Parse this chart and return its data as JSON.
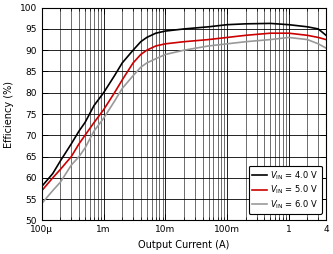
{
  "xlabel": "Output Current (A)",
  "ylabel": "Efficiency (%)",
  "xlim": [
    0.0001,
    4
  ],
  "ylim": [
    50,
    100
  ],
  "yticks": [
    50,
    55,
    60,
    65,
    70,
    75,
    80,
    85,
    90,
    95,
    100
  ],
  "legend": [
    {
      "label": "V_IN = 4.0 V",
      "color": "#000000"
    },
    {
      "label": "V_IN = 5.0 V",
      "color": "#cc0000"
    },
    {
      "label": "V_IN = 6.0 V",
      "color": "#999999"
    }
  ],
  "curves": {
    "vin4": {
      "color": "#000000",
      "x": [
        0.0001,
        0.00015,
        0.0002,
        0.0003,
        0.0004,
        0.0005,
        0.0007,
        0.001,
        0.0015,
        0.002,
        0.003,
        0.004,
        0.005,
        0.007,
        0.01,
        0.02,
        0.05,
        0.1,
        0.2,
        0.5,
        1.0,
        2.0,
        3.0,
        4.0
      ],
      "y": [
        58,
        61,
        64,
        68,
        71,
        73,
        77,
        80,
        84,
        87,
        90,
        92,
        93,
        94,
        94.5,
        95,
        95.5,
        96,
        96.2,
        96.3,
        96.0,
        95.5,
        95.0,
        93.5
      ]
    },
    "vin5": {
      "color": "#cc0000",
      "x": [
        0.0001,
        0.00015,
        0.0002,
        0.0003,
        0.0004,
        0.0005,
        0.0007,
        0.001,
        0.0015,
        0.002,
        0.003,
        0.004,
        0.005,
        0.007,
        0.01,
        0.02,
        0.05,
        0.1,
        0.2,
        0.5,
        1.0,
        2.0,
        3.0,
        4.0
      ],
      "y": [
        57,
        60,
        62,
        65,
        68,
        70,
        73,
        76,
        80,
        83,
        87,
        89,
        90,
        91,
        91.5,
        92,
        92.5,
        93,
        93.5,
        94,
        94.0,
        93.5,
        93.0,
        92.5
      ]
    },
    "vin6": {
      "color": "#999999",
      "x": [
        0.0001,
        0.00015,
        0.0002,
        0.0003,
        0.0004,
        0.0005,
        0.0007,
        0.001,
        0.0015,
        0.002,
        0.003,
        0.004,
        0.005,
        0.007,
        0.01,
        0.02,
        0.05,
        0.1,
        0.2,
        0.5,
        1.0,
        2.0,
        3.0,
        4.0
      ],
      "y": [
        54,
        57,
        59,
        63,
        65,
        67,
        71,
        74,
        78,
        81,
        84,
        86,
        87,
        88,
        89,
        90,
        91,
        91.5,
        92,
        92.5,
        93.0,
        92.5,
        91.5,
        90.5
      ]
    }
  },
  "background_color": "#ffffff",
  "grid_major_color": "#000000",
  "grid_minor_color": "#000000",
  "linewidth": 1.2
}
